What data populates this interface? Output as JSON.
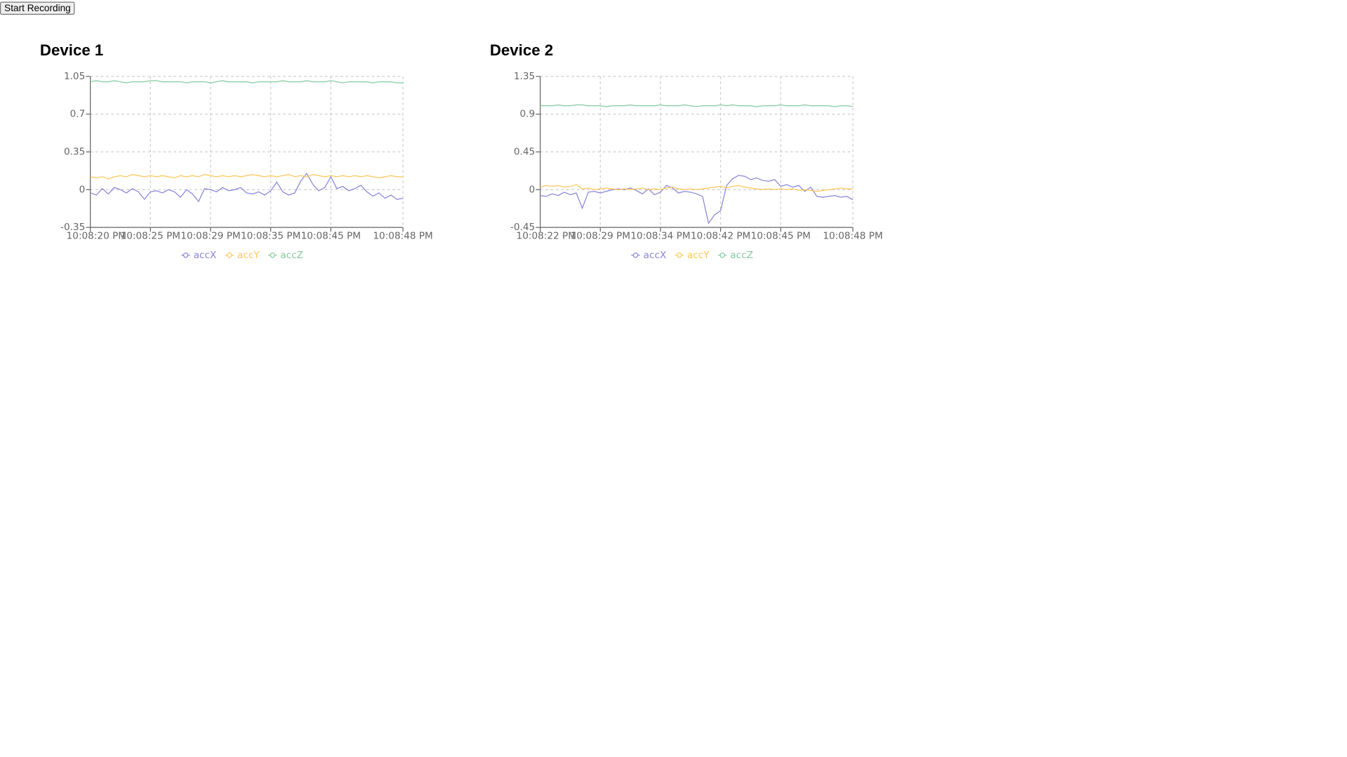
{
  "button": "Start Recording",
  "chart_data": [
    {
      "type": "line",
      "title": "Device 1",
      "categories": [
        "10:08:20 PM",
        null,
        null,
        null,
        null,
        null,
        null,
        null,
        null,
        null,
        "10:08:25 PM",
        null,
        null,
        null,
        null,
        null,
        null,
        null,
        null,
        null,
        "10:08:29 PM",
        null,
        null,
        null,
        null,
        null,
        null,
        null,
        null,
        null,
        "10:08:35 PM",
        null,
        null,
        null,
        null,
        null,
        null,
        null,
        null,
        null,
        "10:08:45 PM",
        null,
        null,
        null,
        null,
        null,
        null,
        null,
        null,
        null,
        null,
        null,
        "10:08:48 PM"
      ],
      "series": [
        {
          "name": "accX",
          "color": "#8884d8",
          "values": [
            -0.03,
            -0.05,
            0.01,
            -0.04,
            0.02,
            0.0,
            -0.03,
            0.01,
            -0.02,
            -0.09,
            -0.02,
            -0.01,
            -0.03,
            0.0,
            -0.02,
            -0.07,
            0.0,
            -0.04,
            -0.11,
            0.01,
            0.0,
            -0.02,
            0.02,
            -0.01,
            0.0,
            0.02,
            -0.03,
            -0.04,
            -0.02,
            -0.05,
            -0.01,
            0.07,
            -0.02,
            -0.05,
            -0.03,
            0.08,
            0.15,
            0.05,
            -0.01,
            0.02,
            0.12,
            0.01,
            0.03,
            -0.01,
            0.01,
            0.04,
            -0.02,
            -0.06,
            -0.03,
            -0.08,
            -0.05,
            -0.09,
            -0.08
          ]
        },
        {
          "name": "accY",
          "color": "#ffc658",
          "values": [
            0.12,
            0.11,
            0.12,
            0.1,
            0.12,
            0.13,
            0.12,
            0.14,
            0.13,
            0.12,
            0.13,
            0.12,
            0.13,
            0.12,
            0.11,
            0.13,
            0.12,
            0.13,
            0.12,
            0.14,
            0.13,
            0.12,
            0.13,
            0.12,
            0.13,
            0.12,
            0.13,
            0.14,
            0.13,
            0.12,
            0.13,
            0.12,
            0.13,
            0.14,
            0.12,
            0.13,
            0.12,
            0.14,
            0.13,
            0.12,
            0.13,
            0.12,
            0.13,
            0.12,
            0.13,
            0.12,
            0.13,
            0.12,
            0.11,
            0.12,
            0.13,
            0.12,
            0.12
          ]
        },
        {
          "name": "accZ",
          "color": "#82ca9d",
          "values": [
            1.0,
            1.01,
            1.0,
            1.0,
            1.01,
            1.0,
            0.99,
            1.0,
            1.0,
            1.0,
            1.01,
            1.01,
            1.0,
            1.0,
            1.0,
            1.0,
            0.99,
            1.0,
            1.0,
            1.0,
            0.99,
            1.0,
            1.01,
            1.0,
            1.0,
            1.0,
            1.0,
            0.99,
            1.0,
            1.0,
            1.0,
            1.0,
            1.01,
            1.0,
            1.0,
            1.0,
            1.01,
            1.0,
            1.0,
            1.0,
            1.01,
            1.0,
            0.99,
            1.0,
            1.0,
            1.0,
            1.0,
            0.99,
            1.0,
            1.0,
            1.0,
            0.99,
            0.99
          ]
        }
      ],
      "ylim": [
        -0.35,
        1.05
      ],
      "yticks": [
        -0.35,
        0,
        0.35,
        0.7,
        1.05
      ],
      "grid": true,
      "legend": "bottom"
    },
    {
      "type": "line",
      "title": "Device 2",
      "categories": [
        "10:08:22 PM",
        null,
        null,
        null,
        null,
        null,
        null,
        null,
        null,
        null,
        "10:08:29 PM",
        null,
        null,
        null,
        null,
        null,
        null,
        null,
        null,
        null,
        "10:08:34 PM",
        null,
        null,
        null,
        null,
        null,
        null,
        null,
        null,
        null,
        "10:08:42 PM",
        null,
        null,
        null,
        null,
        null,
        null,
        null,
        null,
        null,
        "10:08:45 PM",
        null,
        null,
        null,
        null,
        null,
        null,
        null,
        null,
        null,
        null,
        null,
        "10:08:48 PM"
      ],
      "series": [
        {
          "name": "accX",
          "color": "#8884d8",
          "values": [
            -0.07,
            -0.08,
            -0.05,
            -0.07,
            -0.03,
            -0.06,
            -0.04,
            -0.22,
            -0.03,
            -0.02,
            -0.04,
            -0.02,
            0.0,
            0.01,
            0.0,
            0.02,
            -0.01,
            -0.05,
            0.01,
            -0.06,
            -0.03,
            0.05,
            0.02,
            -0.04,
            -0.02,
            -0.03,
            -0.05,
            -0.08,
            -0.4,
            -0.3,
            -0.25,
            0.05,
            0.13,
            0.17,
            0.16,
            0.12,
            0.14,
            0.11,
            0.1,
            0.12,
            0.04,
            0.06,
            0.03,
            0.05,
            -0.02,
            0.03,
            -0.08,
            -0.09,
            -0.08,
            -0.07,
            -0.09,
            -0.08,
            -0.12
          ]
        },
        {
          "name": "accY",
          "color": "#ffc658",
          "values": [
            0.03,
            0.05,
            0.04,
            0.05,
            0.03,
            0.04,
            0.06,
            0.01,
            0.02,
            0.0,
            0.01,
            0.02,
            0.01,
            0.0,
            0.01,
            0.0,
            0.01,
            0.02,
            0.0,
            0.01,
            0.0,
            0.02,
            0.03,
            0.01,
            0.0,
            0.01,
            0.0,
            0.01,
            0.02,
            0.03,
            0.04,
            0.02,
            0.04,
            0.05,
            0.03,
            0.02,
            0.01,
            0.0,
            0.01,
            0.0,
            0.01,
            0.0,
            0.01,
            -0.01,
            0.0,
            -0.01,
            -0.02,
            -0.01,
            0.0,
            0.01,
            0.02,
            0.01,
            0.01
          ]
        },
        {
          "name": "accZ",
          "color": "#82ca9d",
          "values": [
            1.0,
            1.0,
            1.0,
            1.01,
            1.0,
            1.0,
            1.01,
            1.01,
            1.0,
            1.0,
            1.0,
            0.99,
            1.0,
            1.0,
            1.0,
            1.01,
            1.0,
            1.0,
            1.0,
            1.0,
            1.01,
            1.0,
            1.0,
            1.0,
            1.01,
            1.0,
            0.99,
            1.0,
            1.0,
            1.0,
            1.01,
            1.0,
            1.01,
            1.0,
            1.0,
            1.0,
            0.99,
            1.0,
            1.0,
            1.0,
            1.01,
            1.0,
            1.0,
            1.0,
            1.01,
            1.0,
            1.0,
            1.0,
            1.0,
            0.99,
            1.0,
            1.0,
            0.99
          ]
        }
      ],
      "ylim": [
        -0.45,
        1.35
      ],
      "yticks": [
        -0.45,
        0,
        0.45,
        0.9,
        1.35
      ],
      "grid": true,
      "legend": "bottom"
    }
  ]
}
